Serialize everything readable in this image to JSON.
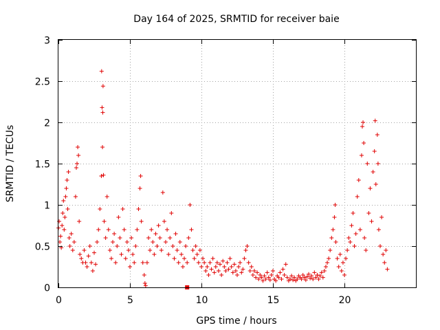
{
  "chart_data": {
    "type": "scatter",
    "title": "Day 164 of 2025, SRMTID for receiver baie",
    "xlabel": "GPS time / hours",
    "ylabel": "SRMTID / TECUs",
    "xlim": [
      0,
      25
    ],
    "ylim": [
      0,
      3
    ],
    "xticks": [
      0,
      5,
      10,
      15,
      20
    ],
    "yticks": [
      0,
      0.5,
      1,
      1.5,
      2,
      2.5,
      3
    ],
    "xtick_labels": [
      "0",
      "5",
      "10",
      "15",
      "20"
    ],
    "ytick_labels": [
      "0",
      "0.5",
      "1",
      "1.5",
      "2",
      "2.5",
      "3"
    ],
    "grid": true,
    "marker": "plus",
    "marker_color": "#e00000",
    "series": [
      {
        "name": "SRMTID",
        "points": [
          [
            0.0,
            0.72
          ],
          [
            0.05,
            0.8
          ],
          [
            0.1,
            0.55
          ],
          [
            0.15,
            0.62
          ],
          [
            0.2,
            0.48
          ],
          [
            0.25,
            0.75
          ],
          [
            0.3,
            0.9
          ],
          [
            0.35,
            1.05
          ],
          [
            0.4,
            0.7
          ],
          [
            0.45,
            0.85
          ],
          [
            0.5,
            1.1
          ],
          [
            0.55,
            1.2
          ],
          [
            0.6,
            1.3
          ],
          [
            0.65,
            0.95
          ],
          [
            0.7,
            1.4
          ],
          [
            0.75,
            0.6
          ],
          [
            0.8,
            0.5
          ],
          [
            0.9,
            0.65
          ],
          [
            1.0,
            0.45
          ],
          [
            1.1,
            0.55
          ],
          [
            1.2,
            1.1
          ],
          [
            1.25,
            1.45
          ],
          [
            1.3,
            1.5
          ],
          [
            1.35,
            1.7
          ],
          [
            1.4,
            1.6
          ],
          [
            1.45,
            0.8
          ],
          [
            1.5,
            0.4
          ],
          [
            1.6,
            0.35
          ],
          [
            1.7,
            0.3
          ],
          [
            1.8,
            0.45
          ],
          [
            1.9,
            0.3
          ],
          [
            2.0,
            0.25
          ],
          [
            2.1,
            0.38
          ],
          [
            2.2,
            0.5
          ],
          [
            2.3,
            0.3
          ],
          [
            2.4,
            0.2
          ],
          [
            2.5,
            0.42
          ],
          [
            2.6,
            0.28
          ],
          [
            2.7,
            0.55
          ],
          [
            2.8,
            0.7
          ],
          [
            2.9,
            0.95
          ],
          [
            3.0,
            1.35
          ],
          [
            3.02,
            2.62
          ],
          [
            3.05,
            2.18
          ],
          [
            3.08,
            1.7
          ],
          [
            3.1,
            2.12
          ],
          [
            3.12,
            2.44
          ],
          [
            3.15,
            1.36
          ],
          [
            3.2,
            0.8
          ],
          [
            3.3,
            0.6
          ],
          [
            3.4,
            1.1
          ],
          [
            3.5,
            0.7
          ],
          [
            3.6,
            0.45
          ],
          [
            3.7,
            0.35
          ],
          [
            3.8,
            0.55
          ],
          [
            3.9,
            0.65
          ],
          [
            4.0,
            0.3
          ],
          [
            4.1,
            0.5
          ],
          [
            4.2,
            0.85
          ],
          [
            4.3,
            0.6
          ],
          [
            4.4,
            0.4
          ],
          [
            4.5,
            0.95
          ],
          [
            4.6,
            0.7
          ],
          [
            4.7,
            0.35
          ],
          [
            4.8,
            0.55
          ],
          [
            4.9,
            0.45
          ],
          [
            5.0,
            0.25
          ],
          [
            5.1,
            0.6
          ],
          [
            5.2,
            0.4
          ],
          [
            5.3,
            0.3
          ],
          [
            5.4,
            0.5
          ],
          [
            5.5,
            0.7
          ],
          [
            5.6,
            0.95
          ],
          [
            5.7,
            1.2
          ],
          [
            5.75,
            1.35
          ],
          [
            5.8,
            0.8
          ],
          [
            5.9,
            0.3
          ],
          [
            6.0,
            0.15
          ],
          [
            6.05,
            0.05
          ],
          [
            6.1,
            0.02
          ],
          [
            6.2,
            0.3
          ],
          [
            6.3,
            0.6
          ],
          [
            6.4,
            0.45
          ],
          [
            6.5,
            0.7
          ],
          [
            6.6,
            0.55
          ],
          [
            6.7,
            0.4
          ],
          [
            6.8,
            0.65
          ],
          [
            6.9,
            0.5
          ],
          [
            7.0,
            0.75
          ],
          [
            7.1,
            0.6
          ],
          [
            7.2,
            0.45
          ],
          [
            7.3,
            1.15
          ],
          [
            7.4,
            0.8
          ],
          [
            7.5,
            0.55
          ],
          [
            7.6,
            0.7
          ],
          [
            7.7,
            0.4
          ],
          [
            7.8,
            0.6
          ],
          [
            7.9,
            0.9
          ],
          [
            8.0,
            0.5
          ],
          [
            8.1,
            0.35
          ],
          [
            8.2,
            0.65
          ],
          [
            8.3,
            0.45
          ],
          [
            8.4,
            0.3
          ],
          [
            8.5,
            0.55
          ],
          [
            8.6,
            0.4
          ],
          [
            8.7,
            0.25
          ],
          [
            8.8,
            0.35
          ],
          [
            8.9,
            0.5
          ],
          [
            9.0,
            0.3
          ],
          [
            9.1,
            0.6
          ],
          [
            9.2,
            1.0
          ],
          [
            9.3,
            0.7
          ],
          [
            9.4,
            0.45
          ],
          [
            9.5,
            0.35
          ],
          [
            9.6,
            0.5
          ],
          [
            9.7,
            0.4
          ],
          [
            9.8,
            0.3
          ],
          [
            9.9,
            0.45
          ],
          [
            10.0,
            0.25
          ],
          [
            10.1,
            0.35
          ],
          [
            10.2,
            0.3
          ],
          [
            10.3,
            0.2
          ],
          [
            10.4,
            0.25
          ],
          [
            10.5,
            0.15
          ],
          [
            10.6,
            0.3
          ],
          [
            10.7,
            0.22
          ],
          [
            10.8,
            0.35
          ],
          [
            10.9,
            0.18
          ],
          [
            11.0,
            0.25
          ],
          [
            11.1,
            0.3
          ],
          [
            11.2,
            0.2
          ],
          [
            11.3,
            0.28
          ],
          [
            11.4,
            0.15
          ],
          [
            11.5,
            0.32
          ],
          [
            11.6,
            0.25
          ],
          [
            11.7,
            0.2
          ],
          [
            11.8,
            0.3
          ],
          [
            11.9,
            0.22
          ],
          [
            12.0,
            0.35
          ],
          [
            12.1,
            0.25
          ],
          [
            12.2,
            0.18
          ],
          [
            12.3,
            0.28
          ],
          [
            12.4,
            0.2
          ],
          [
            12.5,
            0.15
          ],
          [
            12.6,
            0.25
          ],
          [
            12.7,
            0.3
          ],
          [
            12.8,
            0.18
          ],
          [
            12.9,
            0.22
          ],
          [
            13.0,
            0.35
          ],
          [
            13.1,
            0.45
          ],
          [
            13.2,
            0.5
          ],
          [
            13.3,
            0.3
          ],
          [
            13.4,
            0.2
          ],
          [
            13.5,
            0.25
          ],
          [
            13.6,
            0.15
          ],
          [
            13.7,
            0.2
          ],
          [
            13.8,
            0.12
          ],
          [
            13.9,
            0.18
          ],
          [
            14.0,
            0.1
          ],
          [
            14.1,
            0.15
          ],
          [
            14.2,
            0.12
          ],
          [
            14.3,
            0.08
          ],
          [
            14.4,
            0.14
          ],
          [
            14.5,
            0.1
          ],
          [
            14.6,
            0.18
          ],
          [
            14.7,
            0.12
          ],
          [
            14.8,
            0.09
          ],
          [
            14.9,
            0.15
          ],
          [
            15.0,
            0.2
          ],
          [
            15.1,
            0.1
          ],
          [
            15.2,
            0.08
          ],
          [
            15.3,
            0.14
          ],
          [
            15.4,
            0.12
          ],
          [
            15.5,
            0.18
          ],
          [
            15.6,
            0.1
          ],
          [
            15.7,
            0.22
          ],
          [
            15.8,
            0.15
          ],
          [
            15.9,
            0.28
          ],
          [
            16.0,
            0.12
          ],
          [
            16.1,
            0.08
          ],
          [
            16.2,
            0.1
          ],
          [
            16.3,
            0.14
          ],
          [
            16.4,
            0.09
          ],
          [
            16.5,
            0.12
          ],
          [
            16.6,
            0.08
          ],
          [
            16.7,
            0.1
          ],
          [
            16.8,
            0.14
          ],
          [
            16.9,
            0.12
          ],
          [
            17.0,
            0.1
          ],
          [
            17.1,
            0.15
          ],
          [
            17.2,
            0.12
          ],
          [
            17.3,
            0.09
          ],
          [
            17.4,
            0.13
          ],
          [
            17.5,
            0.16
          ],
          [
            17.6,
            0.11
          ],
          [
            17.7,
            0.14
          ],
          [
            17.8,
            0.1
          ],
          [
            17.9,
            0.18
          ],
          [
            18.0,
            0.12
          ],
          [
            18.1,
            0.15
          ],
          [
            18.2,
            0.1
          ],
          [
            18.3,
            0.14
          ],
          [
            18.4,
            0.18
          ],
          [
            18.5,
            0.12
          ],
          [
            18.6,
            0.2
          ],
          [
            18.7,
            0.25
          ],
          [
            18.8,
            0.3
          ],
          [
            18.9,
            0.35
          ],
          [
            19.0,
            0.45
          ],
          [
            19.1,
            0.6
          ],
          [
            19.2,
            0.7
          ],
          [
            19.3,
            0.85
          ],
          [
            19.35,
            1.0
          ],
          [
            19.4,
            0.55
          ],
          [
            19.5,
            0.35
          ],
          [
            19.6,
            0.25
          ],
          [
            19.7,
            0.4
          ],
          [
            19.8,
            0.2
          ],
          [
            19.9,
            0.3
          ],
          [
            20.0,
            0.15
          ],
          [
            20.1,
            0.35
          ],
          [
            20.2,
            0.45
          ],
          [
            20.3,
            0.6
          ],
          [
            20.4,
            0.55
          ],
          [
            20.5,
            0.75
          ],
          [
            20.6,
            0.9
          ],
          [
            20.7,
            0.5
          ],
          [
            20.8,
            0.65
          ],
          [
            20.9,
            1.1
          ],
          [
            21.0,
            1.3
          ],
          [
            21.1,
            0.7
          ],
          [
            21.2,
            1.6
          ],
          [
            21.25,
            1.95
          ],
          [
            21.3,
            2.0
          ],
          [
            21.35,
            1.75
          ],
          [
            21.4,
            0.6
          ],
          [
            21.5,
            0.45
          ],
          [
            21.6,
            1.5
          ],
          [
            21.7,
            0.9
          ],
          [
            21.8,
            1.2
          ],
          [
            21.9,
            0.8
          ],
          [
            22.0,
            1.4
          ],
          [
            22.1,
            1.65
          ],
          [
            22.15,
            2.02
          ],
          [
            22.2,
            1.25
          ],
          [
            22.3,
            1.85
          ],
          [
            22.35,
            1.5
          ],
          [
            22.4,
            0.7
          ],
          [
            22.5,
            0.5
          ],
          [
            22.6,
            0.85
          ],
          [
            22.7,
            0.4
          ],
          [
            22.8,
            0.3
          ],
          [
            22.9,
            0.45
          ],
          [
            23.0,
            0.22
          ]
        ]
      }
    ],
    "reference_point": [
      9.0,
      0.0
    ]
  }
}
